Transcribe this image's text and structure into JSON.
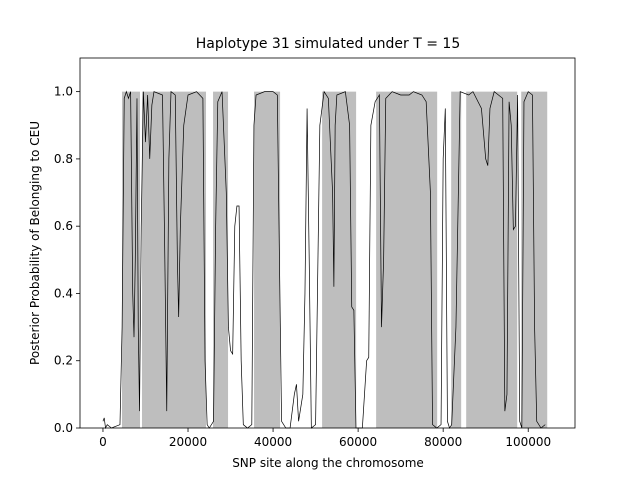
{
  "chart_data": {
    "type": "line",
    "title": "Haplotype 31 simulated under T =  15",
    "xlabel": "SNP site along the chromosome",
    "ylabel": "Posterior Probability of Belonging to CEU",
    "color": "#000000",
    "shade_color": "#bebebe",
    "xlim": [
      -5400,
      111000
    ],
    "ylim": [
      0,
      1.1
    ],
    "xticks": [
      0,
      20000,
      40000,
      60000,
      80000,
      100000
    ],
    "yticks": [
      {
        "value": 0,
        "label": "0.0"
      },
      {
        "value": 0.2,
        "label": "0.2"
      },
      {
        "value": 0.4,
        "label": "0.4"
      },
      {
        "value": 0.6,
        "label": "0.6"
      },
      {
        "value": 0.8,
        "label": "0.8"
      },
      {
        "value": 1.0,
        "label": "1.0"
      }
    ],
    "shaded_regions": [
      [
        4470,
        8706
      ],
      [
        9176,
        24235
      ],
      [
        25882,
        29412
      ],
      [
        35529,
        41647
      ],
      [
        51529,
        59529
      ],
      [
        64235,
        78588
      ],
      [
        81882,
        84235
      ],
      [
        85412,
        97412
      ],
      [
        98353,
        104471
      ]
    ],
    "x": [
      0,
      300,
      600,
      1000,
      2000,
      4000,
      4500,
      5000,
      5500,
      6000,
      6500,
      7000,
      7300,
      7600,
      8000,
      8300,
      8600,
      9000,
      9500,
      10000,
      10500,
      11000,
      11500,
      12000,
      14000,
      14500,
      15000,
      15500,
      16000,
      17000,
      17500,
      17800,
      18200,
      19000,
      20000,
      22000,
      23500,
      24000,
      24500,
      25000,
      26000,
      26500,
      27000,
      28000,
      29000,
      29500,
      30000,
      30500,
      31000,
      31500,
      32000,
      32500,
      33000,
      34000,
      35000,
      35500,
      36000,
      38000,
      40000,
      41000,
      41500,
      42000,
      43000,
      44000,
      45000,
      45500,
      46000,
      47000,
      47500,
      48000,
      48500,
      49000,
      50000,
      51000,
      52000,
      53000,
      54000,
      54300,
      54600,
      55000,
      57000,
      58000,
      58500,
      59000,
      59500,
      61000,
      62000,
      62500,
      63000,
      64000,
      65000,
      65500,
      66000,
      66500,
      68000,
      70000,
      72000,
      73000,
      75000,
      76000,
      77000,
      77500,
      78500,
      79500,
      80000,
      80500,
      81000,
      81500,
      82000,
      83000,
      84000,
      86000,
      87000,
      89000,
      90000,
      90500,
      91000,
      92000,
      93000,
      94000,
      94500,
      95000,
      95500,
      96000,
      96500,
      97000,
      97500,
      98000,
      98500,
      99000,
      100000,
      101000,
      101500,
      102000,
      103000,
      104000
    ],
    "values": [
      0.02,
      0.03,
      0,
      0.01,
      0,
      0.01,
      0.3,
      0.98,
      1.0,
      0.98,
      1.0,
      0.4,
      0.27,
      0.5,
      0.98,
      0.3,
      0.05,
      0.6,
      1.0,
      0.85,
      0.99,
      0.8,
      0.96,
      1.0,
      0.99,
      0.55,
      0.05,
      0.8,
      1.0,
      0.99,
      0.5,
      0.33,
      0.6,
      0.9,
      0.99,
      1.0,
      0.98,
      0.2,
      0.01,
      0,
      0.02,
      0.6,
      0.97,
      1.0,
      0.7,
      0.3,
      0.23,
      0.22,
      0.6,
      0.66,
      0.66,
      0.2,
      0.01,
      0,
      0.01,
      0.9,
      0.99,
      1.0,
      1.0,
      0.99,
      0.5,
      0.02,
      0,
      0,
      0.1,
      0.13,
      0.02,
      0.1,
      0.4,
      0.95,
      0.5,
      0,
      0.01,
      0.9,
      1.0,
      0.98,
      0.7,
      0.42,
      0.9,
      0.99,
      1.0,
      0.9,
      0.36,
      0.35,
      0,
      0,
      0.2,
      0.21,
      0.9,
      0.97,
      0.99,
      0.3,
      0.5,
      0.98,
      1.0,
      0.99,
      0.99,
      1.0,
      0.99,
      0.97,
      0.7,
      0.01,
      0,
      0.01,
      0.8,
      0.95,
      0.02,
      0,
      0.01,
      0.3,
      1.0,
      0.99,
      1.0,
      0.95,
      0.8,
      0.78,
      0.95,
      1.0,
      0.99,
      0.98,
      0.05,
      0.1,
      0.97,
      0.9,
      0.59,
      0.6,
      0.99,
      0.02,
      0,
      0.97,
      1.0,
      0.99,
      0.3,
      0.02,
      0,
      0.01
    ]
  }
}
